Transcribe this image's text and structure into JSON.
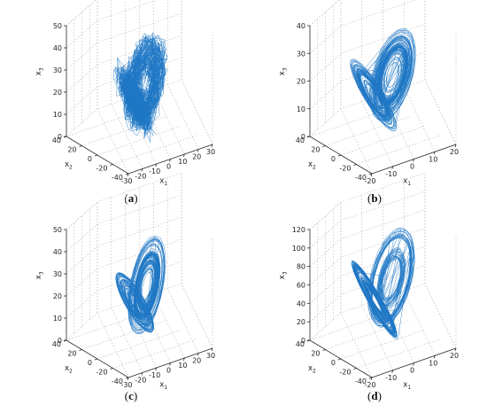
{
  "colors": {
    "trajectory": "#1f77c4",
    "axis": "#2b2b2b",
    "grid": "#b5b5b5"
  },
  "chart_data": [
    {
      "type": "scatter",
      "panel": "a",
      "caption": "a",
      "xlabel": "x",
      "xlabel_sub": "1",
      "ylabel": "x",
      "ylabel_sub": "2",
      "zlabel": "x",
      "zlabel_sub": "3",
      "xlim": [
        -30,
        30
      ],
      "ylim": [
        -40,
        40
      ],
      "zlim": [
        0,
        50
      ],
      "xticks": [
        "-30",
        "-20",
        "-10",
        "0",
        "10",
        "20",
        "30"
      ],
      "yticks": [
        "-40",
        "-20",
        "0",
        "20",
        "40"
      ],
      "zticks": [
        "0",
        "10",
        "20",
        "30",
        "40",
        "50"
      ],
      "grid": true,
      "attractor": {
        "shape": "jagged",
        "x_range": [
          -20,
          20
        ],
        "y_range": [
          -25,
          25
        ],
        "z_range": [
          5,
          40
        ]
      }
    },
    {
      "type": "scatter",
      "panel": "b",
      "caption": "b",
      "xlabel": "x",
      "xlabel_sub": "1",
      "ylabel": "x",
      "ylabel_sub": "2",
      "zlabel": "x",
      "zlabel_sub": "3",
      "xlim": [
        -20,
        20
      ],
      "ylim": [
        -40,
        40
      ],
      "zlim": [
        0,
        40
      ],
      "xticks": [
        "-20",
        "-10",
        "0",
        "10",
        "20"
      ],
      "yticks": [
        "-40",
        "-20",
        "0",
        "20",
        "40"
      ],
      "zticks": [
        "0",
        "10",
        "20",
        "30",
        "40"
      ],
      "grid": true,
      "attractor": {
        "shape": "butterfly",
        "x_range": [
          -18,
          18
        ],
        "y_range": [
          -25,
          25
        ],
        "z_range": [
          5,
          35
        ]
      }
    },
    {
      "type": "scatter",
      "panel": "c",
      "caption": "c",
      "xlabel": "x",
      "xlabel_sub": "1",
      "ylabel": "x",
      "ylabel_sub": "2",
      "zlabel": "x",
      "zlabel_sub": "3",
      "xlim": [
        -30,
        30
      ],
      "ylim": [
        -40,
        40
      ],
      "zlim": [
        0,
        50
      ],
      "xticks": [
        "-30",
        "-20",
        "-10",
        "0",
        "10",
        "20",
        "30"
      ],
      "yticks": [
        "-40",
        "-20",
        "0",
        "20",
        "40"
      ],
      "zticks": [
        "0",
        "10",
        "20",
        "30",
        "40",
        "50"
      ],
      "grid": true,
      "attractor": {
        "shape": "butterfly-tilted",
        "x_range": [
          -20,
          22
        ],
        "y_range": [
          -25,
          25
        ],
        "z_range": [
          5,
          40
        ]
      }
    },
    {
      "type": "scatter",
      "panel": "d",
      "caption": "d",
      "xlabel": "x",
      "xlabel_sub": "1",
      "ylabel": "x",
      "ylabel_sub": "2",
      "zlabel": "x",
      "zlabel_sub": "3",
      "xlim": [
        -20,
        20
      ],
      "ylim": [
        -40,
        40
      ],
      "zlim": [
        0,
        120
      ],
      "xticks": [
        "-20",
        "-10",
        "0",
        "10",
        "20"
      ],
      "yticks": [
        "-40",
        "-20",
        "0",
        "20",
        "40"
      ],
      "zticks": [
        "0",
        "20",
        "40",
        "60",
        "80",
        "100",
        "120"
      ],
      "grid": true,
      "attractor": {
        "shape": "butterfly-tall",
        "x_range": [
          -18,
          18
        ],
        "y_range": [
          -30,
          30
        ],
        "z_range": [
          10,
          100
        ]
      }
    }
  ]
}
